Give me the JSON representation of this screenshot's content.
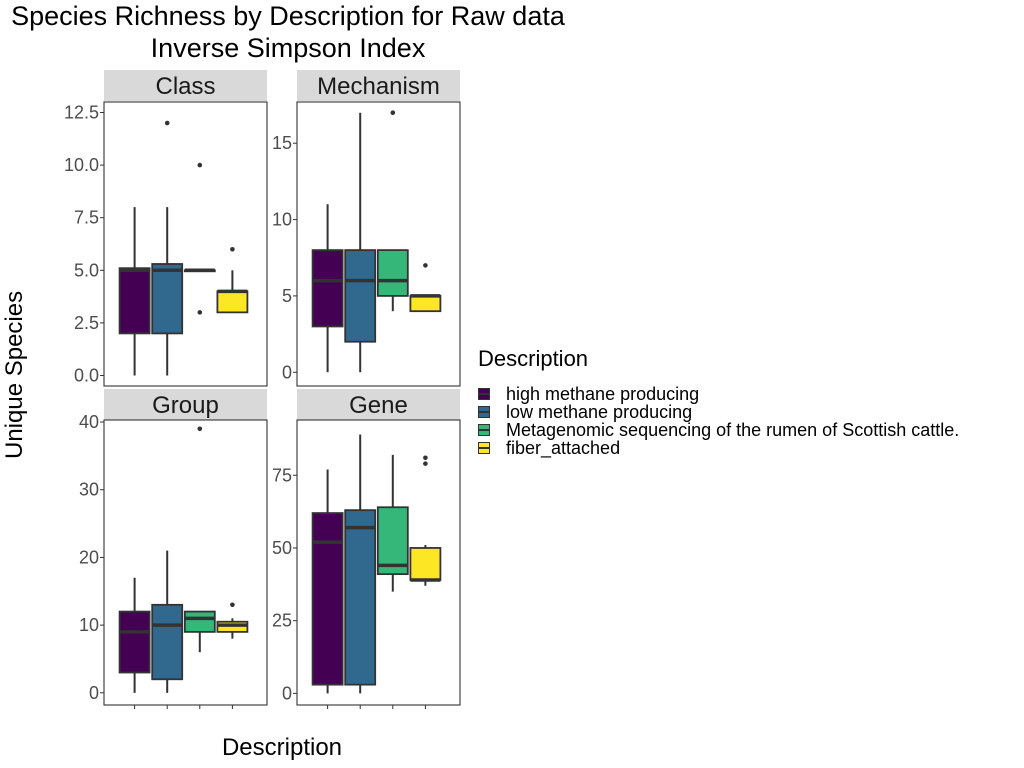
{
  "title": {
    "line1": "Species Richness by Description for Raw data",
    "line2": "Inverse Simpson Index"
  },
  "axis": {
    "xlabel": "Description",
    "ylabel": "Unique Species"
  },
  "legend": {
    "title": "Description",
    "placement": "right",
    "items": [
      {
        "label": "high methane producing",
        "color": "#440154"
      },
      {
        "label": "low methane producing",
        "color": "#31688E"
      },
      {
        "label": "Metagenomic sequencing of the rumen of Scottish cattle.",
        "color": "#35B779"
      },
      {
        "label": "fiber_attached",
        "color": "#FDE725"
      }
    ]
  },
  "chart_data": {
    "type": "boxplot",
    "grid": false,
    "categories": [
      "high methane producing",
      "low methane producing",
      "Metagenomic sequencing of the rumen of Scottish cattle.",
      "fiber_attached"
    ],
    "panels": [
      {
        "name": "Class",
        "ylim": [
          -0.5,
          13.0
        ],
        "yticks": [
          0.0,
          2.5,
          5.0,
          7.5,
          10.0,
          12.5
        ],
        "yticklabels": [
          "0.0",
          "2.5",
          "5.0",
          "7.5",
          "10.0",
          "12.5"
        ],
        "boxes": [
          {
            "min": 0,
            "q1": 2,
            "median": 5,
            "q3": 5.1,
            "max": 8,
            "outliers": []
          },
          {
            "min": 0,
            "q1": 2,
            "median": 5,
            "q3": 5.3,
            "max": 8,
            "outliers": [
              12
            ]
          },
          {
            "min": 5,
            "q1": 5,
            "median": 5,
            "q3": 5,
            "max": 5,
            "outliers": [
              10,
              3
            ]
          },
          {
            "min": 3,
            "q1": 3,
            "median": 4,
            "q3": 4,
            "max": 5,
            "outliers": [
              6
            ]
          }
        ]
      },
      {
        "name": "Mechanism",
        "ylim": [
          -0.9,
          17.7
        ],
        "yticks": [
          0,
          5,
          10,
          15
        ],
        "yticklabels": [
          "0",
          "5",
          "10",
          "15"
        ],
        "boxes": [
          {
            "min": 0,
            "q1": 3,
            "median": 6,
            "q3": 8,
            "max": 11,
            "outliers": []
          },
          {
            "min": 0,
            "q1": 2,
            "median": 6,
            "q3": 8,
            "max": 17,
            "outliers": []
          },
          {
            "min": 4,
            "q1": 5,
            "median": 6,
            "q3": 8,
            "max": 8,
            "outliers": [
              17
            ]
          },
          {
            "min": 4,
            "q1": 4,
            "median": 5,
            "q3": 5,
            "max": 5,
            "outliers": [
              7
            ]
          }
        ]
      },
      {
        "name": "Group",
        "ylim": [
          -1.8,
          40.3
        ],
        "yticks": [
          0,
          10,
          20,
          30,
          40
        ],
        "yticklabels": [
          "0",
          "10",
          "20",
          "30",
          "40"
        ],
        "boxes": [
          {
            "min": 0,
            "q1": 3,
            "median": 9,
            "q3": 12,
            "max": 17,
            "outliers": []
          },
          {
            "min": 0,
            "q1": 2,
            "median": 10,
            "q3": 13,
            "max": 21,
            "outliers": []
          },
          {
            "min": 6,
            "q1": 9,
            "median": 11,
            "q3": 12,
            "max": 12,
            "outliers": [
              39
            ]
          },
          {
            "min": 8,
            "q1": 9,
            "median": 10,
            "q3": 10.5,
            "max": 11,
            "outliers": [
              13
            ]
          }
        ]
      },
      {
        "name": "Gene",
        "ylim": [
          -4,
          94
        ],
        "yticks": [
          0,
          25,
          50,
          75
        ],
        "yticklabels": [
          "0",
          "25",
          "50",
          "75"
        ],
        "boxes": [
          {
            "min": 0,
            "q1": 3,
            "median": 52,
            "q3": 62,
            "max": 77,
            "outliers": []
          },
          {
            "min": 0,
            "q1": 3,
            "median": 57,
            "q3": 63,
            "max": 89,
            "outliers": []
          },
          {
            "min": 35,
            "q1": 41,
            "median": 44,
            "q3": 64,
            "max": 82,
            "outliers": []
          },
          {
            "min": 37,
            "q1": 39,
            "median": 39,
            "q3": 50,
            "max": 51,
            "outliers": [
              79,
              81
            ]
          }
        ]
      }
    ]
  }
}
